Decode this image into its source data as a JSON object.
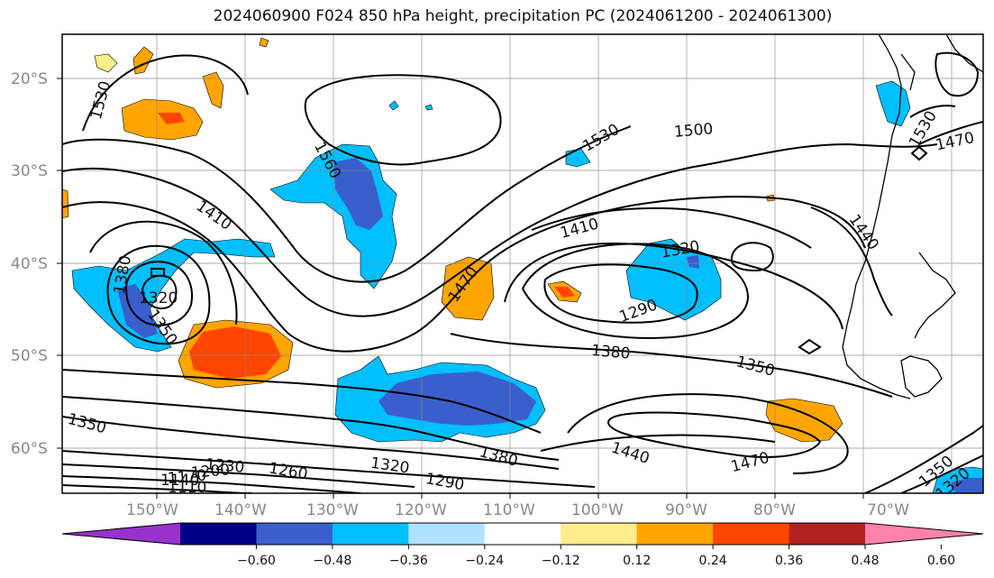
{
  "title": "2024060900 F024 850 hPa height, precipitation PC (2024061200 - 2024061300)",
  "lat_labels": [
    "20°S",
    "30°S",
    "40°S",
    "50°S",
    "60°S"
  ],
  "lon_labels": [
    "150°W",
    "140°W",
    "130°W",
    "120°W",
    "110°W",
    "100°W",
    "90°W",
    "80°W",
    "70°W"
  ],
  "contour_labels": [
    "1530",
    "1560",
    "1410",
    "1380",
    "1320",
    "1350",
    "1530",
    "1500",
    "1470",
    "1410",
    "1320",
    "1470",
    "1290",
    "1440",
    "1380",
    "1350",
    "1530",
    "1350",
    "1230",
    "1260",
    "1170",
    "1200",
    "1140",
    "1110",
    "1320",
    "1290",
    "1380",
    "1440",
    "1470",
    "1350",
    "1320"
  ],
  "colorbar": {
    "colors": [
      "#9932cc",
      "#00008b",
      "#3a5fcd",
      "#00bfff",
      "#b0e2ff",
      "#ffffff",
      "#ffec8b",
      "#ffa500",
      "#ff4500",
      "#b22222",
      "#ff82ab"
    ],
    "tick_labels": [
      "−0.60",
      "−0.48",
      "−0.36",
      "−0.24",
      "−0.12",
      "0.12",
      "0.24",
      "0.36",
      "0.48",
      "0.60"
    ]
  }
}
